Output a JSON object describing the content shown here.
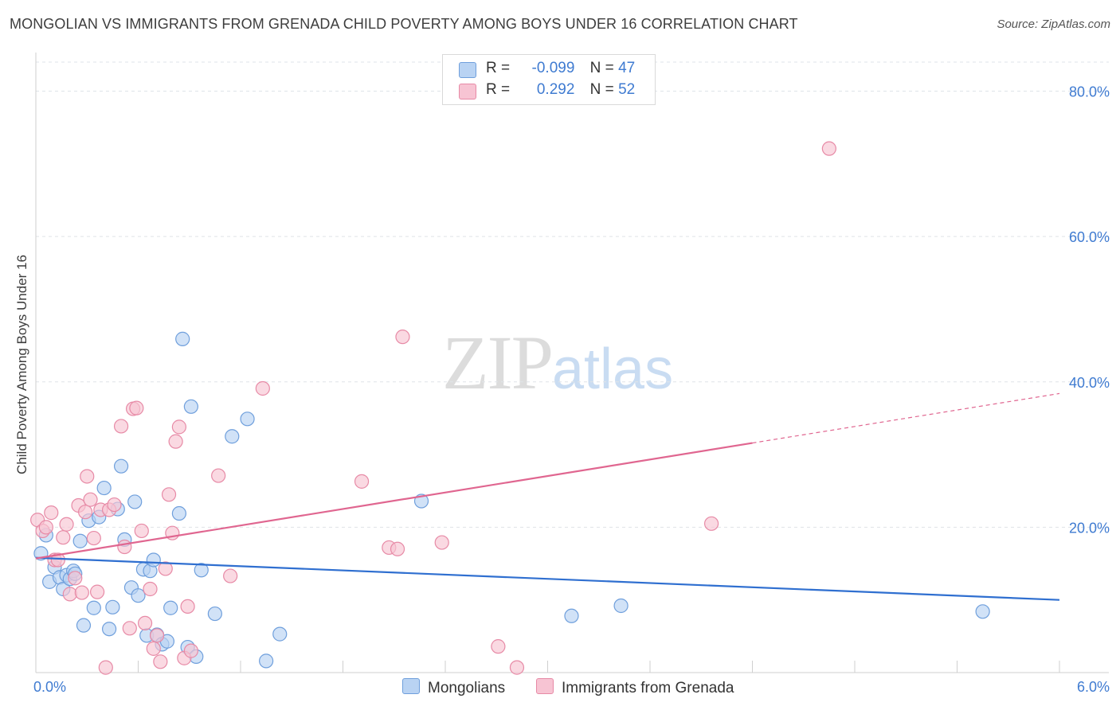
{
  "title": "MONGOLIAN VS IMMIGRANTS FROM GRENADA CHILD POVERTY AMONG BOYS UNDER 16 CORRELATION CHART",
  "source": "Source: ZipAtlas.com",
  "watermark": {
    "zip": "ZIP",
    "atlas": "atlas"
  },
  "legend": {
    "r_label": "R =",
    "n_label": "N =",
    "series": [
      {
        "r": "-0.099",
        "n": "47"
      },
      {
        "r": "0.292",
        "n": "52"
      }
    ]
  },
  "bottom_legend": [
    "Mongolians",
    "Immigrants from Grenada"
  ],
  "colors": {
    "blue_fill": "#b9d3f3",
    "blue_stroke": "#6f9fdc",
    "blue_line": "#2f6fd0",
    "pink_fill": "#f7c4d3",
    "pink_stroke": "#e78aa6",
    "pink_line": "#e06690",
    "tick": "#3f7bd1",
    "grid": "#dfe3e8"
  },
  "chart_data": {
    "type": "scatter",
    "title": "MONGOLIAN VS IMMIGRANTS FROM GRENADA CHILD POVERTY AMONG BOYS UNDER 16 CORRELATION CHART",
    "xlabel": "",
    "ylabel": "Child Poverty Among Boys Under 16",
    "xlim": [
      0,
      6.0
    ],
    "ylim": [
      0,
      84
    ],
    "x_tick_labels": [
      "0.0%",
      "6.0%"
    ],
    "y_ticks": [
      20,
      40,
      60,
      80
    ],
    "y_tick_labels": [
      "20.0%",
      "40.0%",
      "60.0%",
      "80.0%"
    ],
    "series": [
      {
        "name": "Mongolians",
        "r": -0.099,
        "n": 47,
        "trend": {
          "x": [
            0.0,
            6.0
          ],
          "y": [
            15.8,
            10.0
          ],
          "dashed_from": null
        },
        "points": [
          [
            0.03,
            16.4
          ],
          [
            0.06,
            18.9
          ],
          [
            0.08,
            12.5
          ],
          [
            0.11,
            14.5
          ],
          [
            0.14,
            13.1
          ],
          [
            0.16,
            11.5
          ],
          [
            0.18,
            13.4
          ],
          [
            0.2,
            12.9
          ],
          [
            0.22,
            14.0
          ],
          [
            0.23,
            13.6
          ],
          [
            0.26,
            18.1
          ],
          [
            0.28,
            6.5
          ],
          [
            0.31,
            20.9
          ],
          [
            0.34,
            8.9
          ],
          [
            0.37,
            21.4
          ],
          [
            0.4,
            25.4
          ],
          [
            0.43,
            6.0
          ],
          [
            0.45,
            9.0
          ],
          [
            0.48,
            22.5
          ],
          [
            0.5,
            28.4
          ],
          [
            0.52,
            18.3
          ],
          [
            0.56,
            11.7
          ],
          [
            0.58,
            23.5
          ],
          [
            0.6,
            10.6
          ],
          [
            0.63,
            14.2
          ],
          [
            0.65,
            5.1
          ],
          [
            0.67,
            14.0
          ],
          [
            0.69,
            15.5
          ],
          [
            0.71,
            5.2
          ],
          [
            0.74,
            3.9
          ],
          [
            0.77,
            4.3
          ],
          [
            0.79,
            8.9
          ],
          [
            0.84,
            21.9
          ],
          [
            0.86,
            45.9
          ],
          [
            0.89,
            3.5
          ],
          [
            0.91,
            36.6
          ],
          [
            0.94,
            2.2
          ],
          [
            0.97,
            14.1
          ],
          [
            1.05,
            8.1
          ],
          [
            1.15,
            32.5
          ],
          [
            1.24,
            34.9
          ],
          [
            1.35,
            1.6
          ],
          [
            1.43,
            5.3
          ],
          [
            2.26,
            23.6
          ],
          [
            3.14,
            7.8
          ],
          [
            3.43,
            9.2
          ],
          [
            5.55,
            8.4
          ]
        ]
      },
      {
        "name": "Immigrants from Grenada",
        "r": 0.292,
        "n": 52,
        "trend": {
          "x": [
            0.0,
            6.0
          ],
          "y": [
            15.7,
            38.4
          ],
          "dashed_from": 4.2
        },
        "points": [
          [
            0.01,
            21.0
          ],
          [
            0.04,
            19.5
          ],
          [
            0.06,
            20.0
          ],
          [
            0.09,
            22.0
          ],
          [
            0.11,
            15.5
          ],
          [
            0.13,
            15.5
          ],
          [
            0.16,
            18.6
          ],
          [
            0.18,
            20.4
          ],
          [
            0.2,
            10.8
          ],
          [
            0.23,
            13.0
          ],
          [
            0.25,
            23.0
          ],
          [
            0.27,
            11.0
          ],
          [
            0.29,
            22.1
          ],
          [
            0.3,
            27.0
          ],
          [
            0.32,
            23.8
          ],
          [
            0.34,
            18.5
          ],
          [
            0.36,
            11.1
          ],
          [
            0.38,
            22.4
          ],
          [
            0.41,
            0.7
          ],
          [
            0.43,
            22.4
          ],
          [
            0.46,
            23.1
          ],
          [
            0.5,
            33.9
          ],
          [
            0.52,
            17.3
          ],
          [
            0.55,
            6.1
          ],
          [
            0.57,
            36.3
          ],
          [
            0.59,
            36.4
          ],
          [
            0.62,
            19.5
          ],
          [
            0.64,
            6.8
          ],
          [
            0.67,
            11.5
          ],
          [
            0.69,
            3.3
          ],
          [
            0.71,
            5.1
          ],
          [
            0.73,
            1.5
          ],
          [
            0.76,
            14.3
          ],
          [
            0.78,
            24.5
          ],
          [
            0.8,
            19.2
          ],
          [
            0.82,
            31.8
          ],
          [
            0.84,
            33.8
          ],
          [
            0.87,
            2.0
          ],
          [
            0.89,
            9.1
          ],
          [
            0.91,
            3.0
          ],
          [
            1.07,
            27.1
          ],
          [
            1.14,
            13.3
          ],
          [
            1.33,
            39.1
          ],
          [
            1.91,
            26.3
          ],
          [
            2.07,
            17.2
          ],
          [
            2.12,
            17.0
          ],
          [
            2.15,
            46.2
          ],
          [
            2.38,
            17.9
          ],
          [
            2.71,
            3.6
          ],
          [
            2.82,
            0.7
          ],
          [
            3.96,
            20.5
          ],
          [
            4.65,
            72.1
          ]
        ]
      }
    ]
  }
}
